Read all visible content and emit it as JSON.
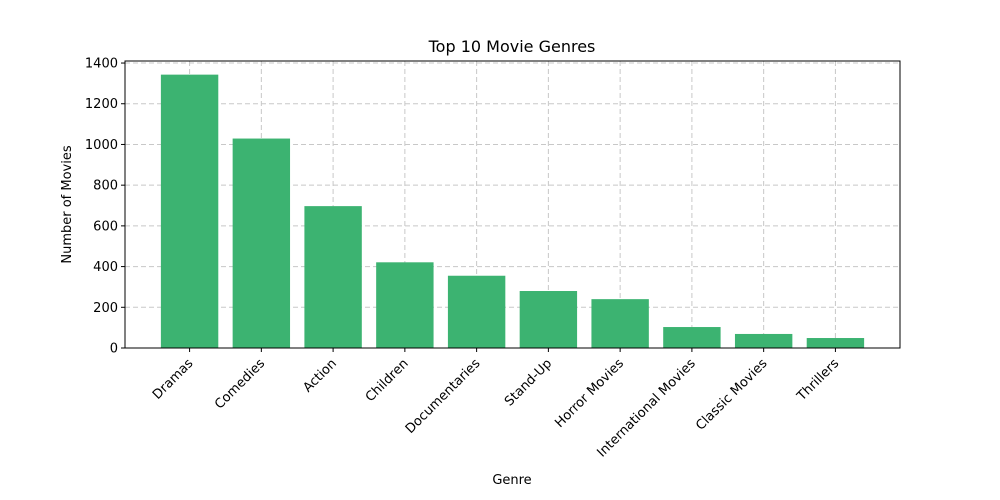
{
  "chart_data": {
    "type": "bar",
    "title": "Top 10 Movie Genres",
    "xlabel": "Genre",
    "ylabel": "Number of Movies",
    "categories": [
      "Dramas",
      "Comedies",
      "Action",
      "Children",
      "Documentaries",
      "Stand-Up",
      "Horror Movies",
      "International Movies",
      "Classic Movies",
      "Thrillers"
    ],
    "values": [
      1343,
      1029,
      697,
      421,
      355,
      280,
      240,
      103,
      69,
      49
    ],
    "ylim": [
      0,
      1410
    ],
    "yticks": [
      0,
      200,
      400,
      600,
      800,
      1000,
      1200,
      1400
    ],
    "grid": true,
    "bar_color": "#3cb371"
  }
}
